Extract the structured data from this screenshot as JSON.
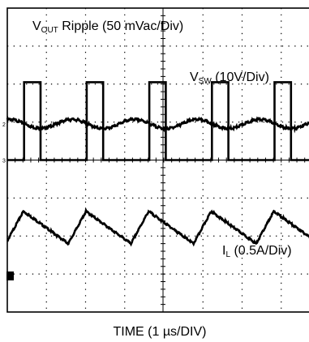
{
  "chart_data": {
    "type": "line",
    "title": "",
    "xlabel": "TIME (1 µs/DIV)",
    "ylabel": "",
    "grid": true,
    "x_divisions": 8,
    "y_divisions": 8,
    "x_unit": "µs",
    "xlim": [
      0,
      8
    ],
    "channel_markers": [
      "2",
      "3"
    ],
    "series": [
      {
        "name": "VOUT Ripple (50 mVac/Div)",
        "label_main": "V",
        "label_sub": "OUT",
        "label_rest": " Ripple (50 mVac/Div)",
        "scale": "50 mVac/Div",
        "waveform": "sinusoidal ripple",
        "offset_div": 0.95,
        "amplitude_div": 0.12,
        "period_us": 1.6,
        "phase_us": 0.05
      },
      {
        "name": "VSW (10V/Div)",
        "label_main": "V",
        "label_sub": "SW",
        "label_rest": " (10V/Div)",
        "scale": "10V/Div",
        "waveform": "pulse",
        "low_div": 0.0,
        "high_div": 2.05,
        "period_us": 1.6,
        "on_time_us": 0.42,
        "first_rise_us": 0.43
      },
      {
        "name": "IL (0.5A/Div)",
        "label_main": "I",
        "label_sub": "L",
        "label_rest": " (0.5A/Div)",
        "scale": "0.5A/Div",
        "waveform": "triangle",
        "min_div": -2.2,
        "max_div": -1.35,
        "period_us": 1.6,
        "rise_time_us": 0.45,
        "first_valley_us": -0.04
      }
    ]
  }
}
